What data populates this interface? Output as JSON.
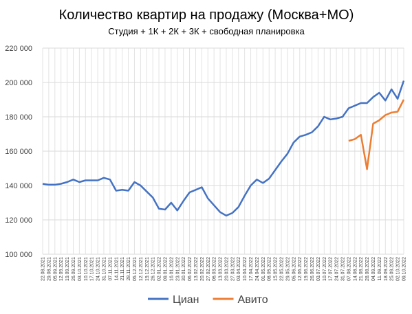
{
  "chart_data": {
    "type": "line",
    "title": "Количество квартир на продажу (Москва+МО)",
    "subtitle": "Студия + 1К + 2К + 3К + свободная планировка",
    "categories": [
      "22.08.2021",
      "29.08.2021",
      "05.09.2021",
      "12.09.2021",
      "19.09.2021",
      "26.09.2021",
      "03.10.2021",
      "10.10.2021",
      "17.10.2021",
      "24.10.2021",
      "31.10.2021",
      "07.11.2021",
      "14.11.2021",
      "21.11.2021",
      "28.11.2021",
      "05.12.2021",
      "12.12.2021",
      "19.12.2021",
      "26.12.2021",
      "02.01.2022",
      "09.01.2022",
      "16.01.2022",
      "23.01.2022",
      "30.01.2022",
      "06.02.2022",
      "13.02.2022",
      "20.02.2022",
      "27.02.2022",
      "06.03.2022",
      "13.03.2022",
      "20.03.2022",
      "27.03.2022",
      "03.04.2022",
      "10.04.2022",
      "17.04.2022",
      "24.04.2022",
      "01.05.2022",
      "08.05.2022",
      "15.05.2022",
      "22.05.2022",
      "29.05.2022",
      "05.06.2022",
      "12.06.2022",
      "19.06.2022",
      "26.06.2022",
      "03.07.2022",
      "10.07.2022",
      "17.07.2022",
      "24.07.2022",
      "31.07.2022",
      "07.08.2022",
      "14.08.2022",
      "21.08.2022",
      "28.08.2022",
      "04.09.2022",
      "11.09.2022",
      "18.09.2022",
      "25.09.2022",
      "02.10.2022",
      "09.10.2022"
    ],
    "series": [
      {
        "name": "Циан",
        "color": "#4472c4",
        "values": [
          141000,
          140500,
          140500,
          141000,
          142000,
          143500,
          142000,
          143000,
          143000,
          143000,
          144500,
          143500,
          137000,
          137500,
          137000,
          142000,
          140000,
          136500,
          133000,
          126500,
          126000,
          130000,
          125500,
          131000,
          136000,
          137500,
          139000,
          132500,
          128500,
          124500,
          122500,
          124000,
          127500,
          134000,
          140000,
          143500,
          141500,
          144000,
          149000,
          154000,
          158500,
          165000,
          168500,
          169500,
          171000,
          174500,
          180000,
          178500,
          179000,
          180000,
          185000,
          186500,
          188000,
          188000,
          191500,
          194000,
          189500,
          196000,
          190500,
          201000
        ]
      },
      {
        "name": "Авито",
        "color": "#ed7d31",
        "values": [
          null,
          null,
          null,
          null,
          null,
          null,
          null,
          null,
          null,
          null,
          null,
          null,
          null,
          null,
          null,
          null,
          null,
          null,
          null,
          null,
          null,
          null,
          null,
          null,
          null,
          null,
          null,
          null,
          null,
          null,
          null,
          null,
          null,
          null,
          null,
          null,
          null,
          null,
          null,
          null,
          null,
          null,
          null,
          null,
          null,
          null,
          null,
          null,
          null,
          null,
          166000,
          167000,
          169500,
          149500,
          176000,
          178000,
          181000,
          182500,
          183000,
          190000
        ]
      }
    ],
    "ylim": [
      100000,
      220000
    ],
    "yticks": [
      {
        "value": 100000,
        "label": "100 000"
      },
      {
        "value": 120000,
        "label": "120 000"
      },
      {
        "value": 140000,
        "label": "140 000"
      },
      {
        "value": 160000,
        "label": "160 000"
      },
      {
        "value": 180000,
        "label": "180 000"
      },
      {
        "value": 200000,
        "label": "200 000"
      },
      {
        "value": 220000,
        "label": "220 000"
      }
    ],
    "grid": true,
    "legend": "bottom"
  }
}
